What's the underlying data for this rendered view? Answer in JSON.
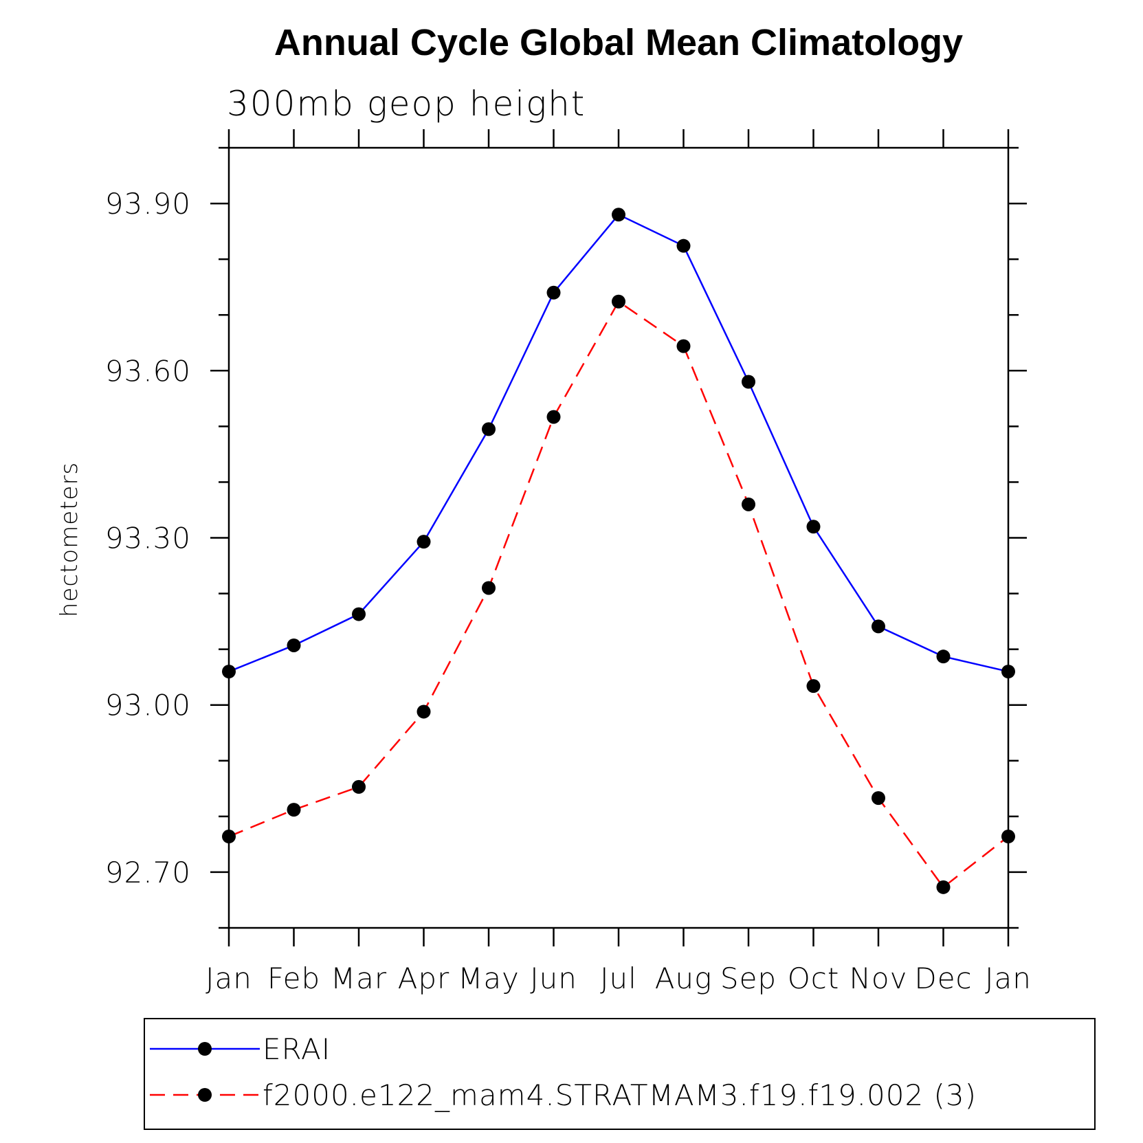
{
  "chart_data": {
    "type": "line",
    "title": "Annual Cycle Global Mean Climatology",
    "subtitle": "300mb geop height",
    "xlabel": "",
    "ylabel": "hectometers",
    "categories": [
      "Jan",
      "Feb",
      "Mar",
      "Apr",
      "May",
      "Jun",
      "Jul",
      "Aug",
      "Sep",
      "Oct",
      "Nov",
      "Dec",
      "Jan"
    ],
    "ylim": [
      92.6,
      94.0
    ],
    "yticks": [
      92.7,
      93.0,
      93.3,
      93.6,
      93.9
    ],
    "ytick_labels": [
      "92.70",
      "93.00",
      "93.30",
      "93.60",
      "93.90"
    ],
    "yminor_step": 0.1,
    "grid": false,
    "legend_position": "bottom",
    "series": [
      {
        "name": "ERAI",
        "color": "#0000ff",
        "line_style": "solid",
        "marker": "circle",
        "values": [
          93.06,
          93.107,
          93.163,
          93.293,
          93.495,
          93.74,
          93.88,
          93.824,
          93.58,
          93.32,
          93.141,
          93.087,
          93.06
        ]
      },
      {
        "name": "f2000.e122_mam4.STRATMAM3.f19.f19.002 (3)",
        "color": "#ff0000",
        "line_style": "dashed",
        "marker": "circle",
        "values": [
          92.764,
          92.812,
          92.853,
          92.988,
          93.21,
          93.517,
          93.724,
          93.644,
          93.36,
          93.034,
          92.833,
          92.673,
          92.764
        ]
      }
    ]
  }
}
